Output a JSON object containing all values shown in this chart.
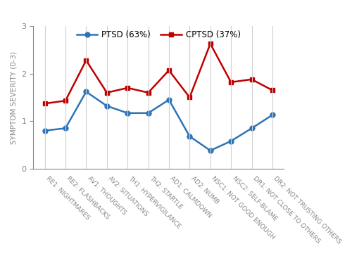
{
  "categories": [
    "RE1: NIGHTMARES",
    "RE2: FLASHBACKS",
    "AV1: THOUGHTS",
    "AV2: SITUATIONS",
    "TH1: HYPERVIGILANCE",
    "TH2: STARTLE",
    "AD1: CALMDOWN",
    "AD2: NUMB",
    "NSC1: NOT GOOD ENOUGH",
    "NSC2: SELF-BLAME",
    "DR1: NOT CLOSE TO OTHERS",
    "DR2: NOT TRUSTING OTHERS"
  ],
  "ptsd_values": [
    0.8,
    0.85,
    1.62,
    1.32,
    1.17,
    1.17,
    1.45,
    0.68,
    0.38,
    0.58,
    0.85,
    1.13
  ],
  "cptsd_values": [
    1.37,
    1.43,
    2.28,
    1.6,
    1.7,
    1.6,
    2.07,
    1.5,
    2.63,
    1.82,
    1.88,
    1.65
  ],
  "ptsd_color": "#2E75B6",
  "cptsd_color": "#C00000",
  "ptsd_label": "PTSD (63%)",
  "cptsd_label": "CPTSD (37%)",
  "ylabel": "SYMPTOM SEVERITY (0-3)",
  "ylim": [
    0,
    3
  ],
  "yticks": [
    0,
    1,
    2,
    3
  ],
  "background_color": "#ffffff",
  "grid_color": "#d0d0d0",
  "legend_fontsize": 8.5,
  "tick_label_fontsize": 6.5,
  "ylabel_fontsize": 7.5,
  "ytick_fontsize": 8,
  "marker_size": 5,
  "line_width": 1.8,
  "x_label_rotation": -45,
  "x_label_ha": "left"
}
